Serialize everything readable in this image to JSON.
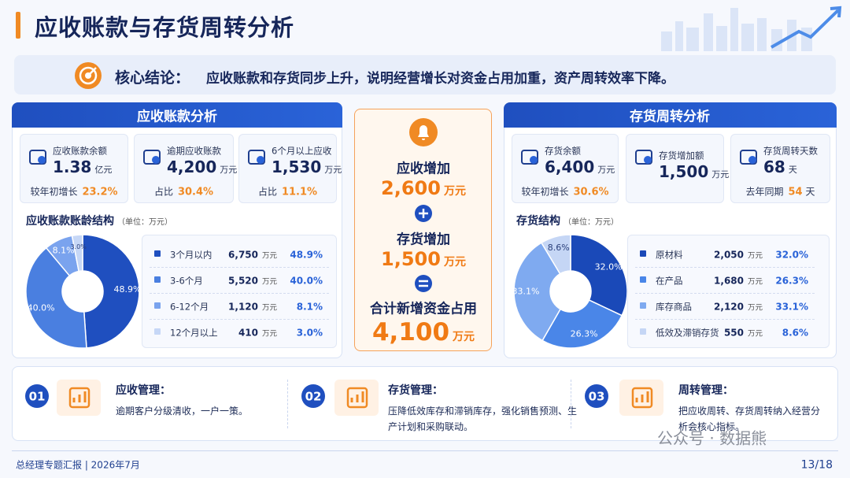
{
  "header": {
    "title": "应收账款与存货周转分析"
  },
  "conclusion": {
    "label": "核心结论：",
    "text": "应收账款和存货同步上升，说明经营增长对资金占用加重，资产周转效率下降。"
  },
  "receivables": {
    "title": "应收账款分析",
    "kpis": [
      {
        "label": "应收账款余额",
        "value": "1.38",
        "unit": "亿元",
        "note_label": "较年初增长",
        "note_value": "23.2%"
      },
      {
        "label": "逾期应收账款",
        "value": "4,200",
        "unit": "万元",
        "note_label": "占比",
        "note_value": "30.4%"
      },
      {
        "label": "6个月以上应收",
        "value": "1,530",
        "unit": "万元",
        "note_label": "占比",
        "note_value": "11.1%"
      }
    ],
    "structure": {
      "title": "应收账款账龄结构",
      "unit": "（单位：万元）",
      "rows": [
        {
          "name": "3个月以内",
          "amount": "6,750",
          "unit": "万元",
          "share": 48.9,
          "share_label": "48.9%"
        },
        {
          "name": "3-6个月",
          "amount": "5,520",
          "unit": "万元",
          "share": 40.0,
          "share_label": "40.0%"
        },
        {
          "name": "6-12个月",
          "amount": "1,120",
          "unit": "万元",
          "share": 8.1,
          "share_label": "8.1%"
        },
        {
          "name": "12个月以上",
          "amount": "410",
          "unit": "万元",
          "share": 3.0,
          "share_label": "3.0%"
        }
      ]
    }
  },
  "center": {
    "items": [
      {
        "label": "应收增加",
        "value": "2,600",
        "unit": "万元"
      },
      {
        "label": "存货增加",
        "value": "1,500",
        "unit": "万元"
      },
      {
        "label": "合计新增资金占用",
        "value": "4,100",
        "unit": "万元"
      }
    ]
  },
  "inventory": {
    "title": "存货周转分析",
    "kpis": [
      {
        "label": "存货余额",
        "value": "6,400",
        "unit": "万元",
        "note_label": "较年初增长",
        "note_value": "30.6%"
      },
      {
        "label": "存货增加额",
        "value": "1,500",
        "unit": "万元"
      },
      {
        "label": "存货周转天数",
        "value": "68",
        "unit": "天",
        "note_label": "去年同期",
        "note_value": "54",
        "note_unit": "天"
      }
    ],
    "structure": {
      "title": "存货结构",
      "unit": "（单位：万元）",
      "rows": [
        {
          "name": "原材料",
          "amount": "2,050",
          "unit": "万元",
          "share": 32.0,
          "share_label": "32.0%"
        },
        {
          "name": "在产品",
          "amount": "1,680",
          "unit": "万元",
          "share": 26.3,
          "share_label": "26.3%"
        },
        {
          "name": "库存商品",
          "amount": "2,120",
          "unit": "万元",
          "share": 33.1,
          "share_label": "33.1%"
        },
        {
          "name": "低效及滞销存货",
          "amount": "550",
          "unit": "万元",
          "share": 8.6,
          "share_label": "8.6%"
        }
      ]
    }
  },
  "actions": [
    {
      "num": "01",
      "title": "应收管理：",
      "text": "逾期客户分级清收，一户一策。"
    },
    {
      "num": "02",
      "title": "存货管理：",
      "text": "压降低效库存和滞销库存，强化销售预测、生产计划和采购联动。"
    },
    {
      "num": "03",
      "title": "周转管理：",
      "text": "把应收周转、存货周转纳入经营分析会核心指标。"
    }
  ],
  "watermark": "公众号 · 数据熊",
  "footer": {
    "left": "总经理专题汇报 | 2026年7月",
    "page": "13/18"
  }
}
